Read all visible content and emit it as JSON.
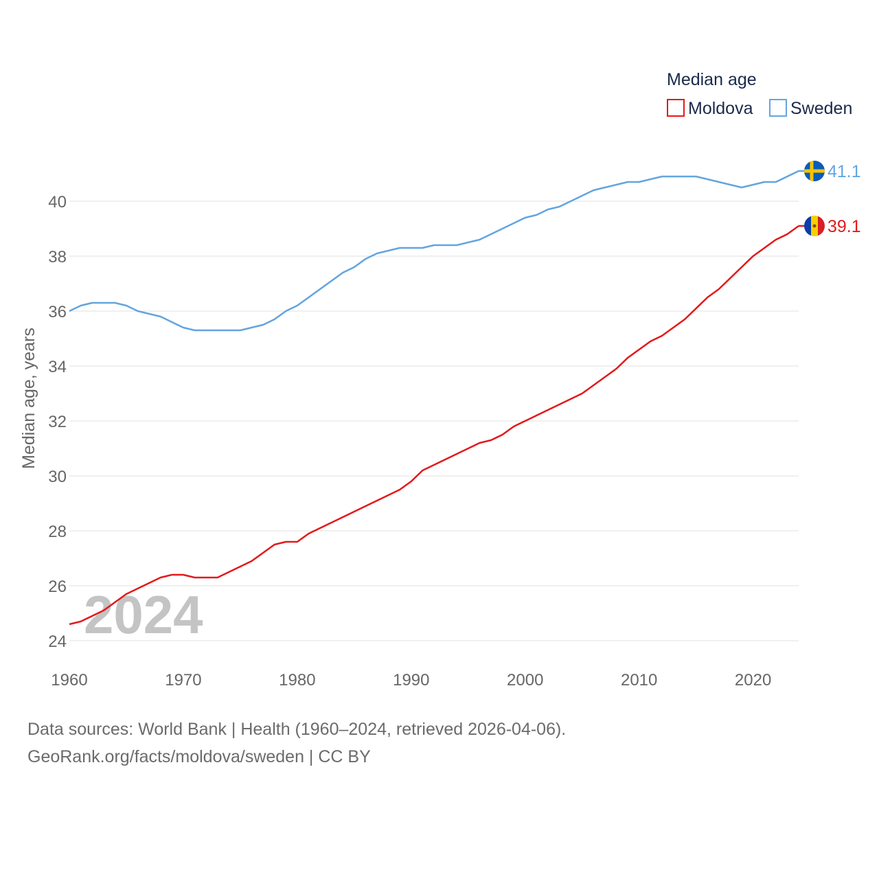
{
  "chart_data": {
    "type": "line",
    "title": "",
    "legend_title": "Median age",
    "ylabel": "Median age, years",
    "xlabel": "",
    "xlim": [
      1960,
      2024
    ],
    "ylim": [
      23.5,
      41.5
    ],
    "xticks": [
      1960,
      1970,
      1980,
      1990,
      2000,
      2010,
      2020
    ],
    "yticks": [
      24,
      26,
      28,
      30,
      32,
      34,
      36,
      38,
      40
    ],
    "watermark_year": "2024",
    "legend_position": "top-right",
    "x": [
      1960,
      1961,
      1962,
      1963,
      1964,
      1965,
      1966,
      1967,
      1968,
      1969,
      1970,
      1971,
      1972,
      1973,
      1974,
      1975,
      1976,
      1977,
      1978,
      1979,
      1980,
      1981,
      1982,
      1983,
      1984,
      1985,
      1986,
      1987,
      1988,
      1989,
      1990,
      1991,
      1992,
      1993,
      1994,
      1995,
      1996,
      1997,
      1998,
      1999,
      2000,
      2001,
      2002,
      2003,
      2004,
      2005,
      2006,
      2007,
      2008,
      2009,
      2010,
      2011,
      2012,
      2013,
      2014,
      2015,
      2016,
      2017,
      2018,
      2019,
      2020,
      2021,
      2022,
      2023,
      2024
    ],
    "series": [
      {
        "name": "Moldova",
        "color": "#e31a1c",
        "end_label": "39.1",
        "flag": "moldova-flag",
        "values": [
          24.6,
          24.7,
          24.9,
          25.1,
          25.4,
          25.7,
          25.9,
          26.1,
          26.3,
          26.4,
          26.4,
          26.3,
          26.3,
          26.3,
          26.5,
          26.7,
          26.9,
          27.2,
          27.5,
          27.6,
          27.6,
          27.9,
          28.1,
          28.3,
          28.5,
          28.7,
          28.9,
          29.1,
          29.3,
          29.5,
          29.8,
          30.2,
          30.4,
          30.6,
          30.8,
          31.0,
          31.2,
          31.3,
          31.5,
          31.8,
          32.0,
          32.2,
          32.4,
          32.6,
          32.8,
          33.0,
          33.3,
          33.6,
          33.9,
          34.3,
          34.6,
          34.9,
          35.1,
          35.4,
          35.7,
          36.1,
          36.5,
          36.8,
          37.2,
          37.6,
          38.0,
          38.3,
          38.6,
          38.8,
          39.1
        ]
      },
      {
        "name": "Sweden",
        "color": "#63a5e0",
        "end_label": "41.1",
        "flag": "sweden-flag",
        "values": [
          36.0,
          36.2,
          36.3,
          36.3,
          36.3,
          36.2,
          36.0,
          35.9,
          35.8,
          35.6,
          35.4,
          35.3,
          35.3,
          35.3,
          35.3,
          35.3,
          35.4,
          35.5,
          35.7,
          36.0,
          36.2,
          36.5,
          36.8,
          37.1,
          37.4,
          37.6,
          37.9,
          38.1,
          38.2,
          38.3,
          38.3,
          38.3,
          38.4,
          38.4,
          38.4,
          38.5,
          38.6,
          38.8,
          39.0,
          39.2,
          39.4,
          39.5,
          39.7,
          39.8,
          40.0,
          40.2,
          40.4,
          40.5,
          40.6,
          40.7,
          40.7,
          40.8,
          40.9,
          40.9,
          40.9,
          40.9,
          40.8,
          40.7,
          40.6,
          40.5,
          40.6,
          40.7,
          40.7,
          40.9,
          41.1
        ]
      }
    ]
  },
  "footer": {
    "source": "Data sources: World Bank | Health (1960–2024, retrieved 2026-04-06).",
    "attribution": "GeoRank.org/facts/moldova/sweden | CC BY"
  },
  "colors": {
    "grid": "#e6e6e6",
    "axis_text": "#666666",
    "legend_text": "#1b2a4a",
    "watermark": "#c4c4c4"
  }
}
